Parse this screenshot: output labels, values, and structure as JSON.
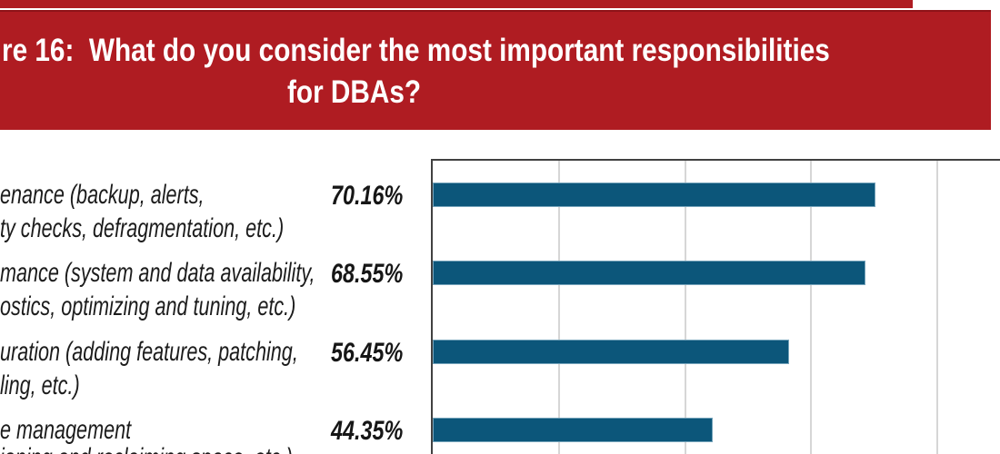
{
  "figure": {
    "banner_line1": "re 16:  What do you consider the most important responsibilities",
    "banner_line2": "for DBAs?"
  },
  "colors": {
    "banner_red": "#af1c22",
    "banner_top_edge": "#8e1318",
    "bar_teal": "#0c567a",
    "bar_edge": "#aecddd",
    "gridline_gray": "#d6d6d6",
    "plot_border_gray": "#414141",
    "label_text": "#1c1c1c",
    "banner_text": "#ffffff"
  },
  "chart_data": {
    "type": "bar",
    "orientation": "horizontal",
    "title": "re 16:  What do you consider the most important responsibilities for DBAs?",
    "title_note": "figure title banner cropped at left and top of screenshot",
    "categories": [
      {
        "line1": "enance (backup, alerts,",
        "line2": "ty checks, defragmentation, etc.)"
      },
      {
        "line1": "mance (system and data availability,",
        "line2": "ostics, optimizing and tuning, etc.)"
      },
      {
        "line1": "uration (adding features, patching,",
        "line2": "ling, etc.)"
      },
      {
        "line1": "e management",
        "line2": "ioning and reclaiming space, etc.)"
      }
    ],
    "values": [
      70.16,
      68.55,
      56.45,
      44.35
    ],
    "value_labels": [
      "70.16%",
      "68.55%",
      "56.45%",
      "44.35%"
    ],
    "xlabel": "",
    "ylabel": "",
    "xlim": [
      0,
      90
    ],
    "gridlines_percent": [
      20,
      40,
      60,
      80
    ],
    "grid": true,
    "legend": false,
    "bars_cropped": "category labels are cut off at the left edge of the screenshot; last category second line is cut off at the bottom edge"
  }
}
